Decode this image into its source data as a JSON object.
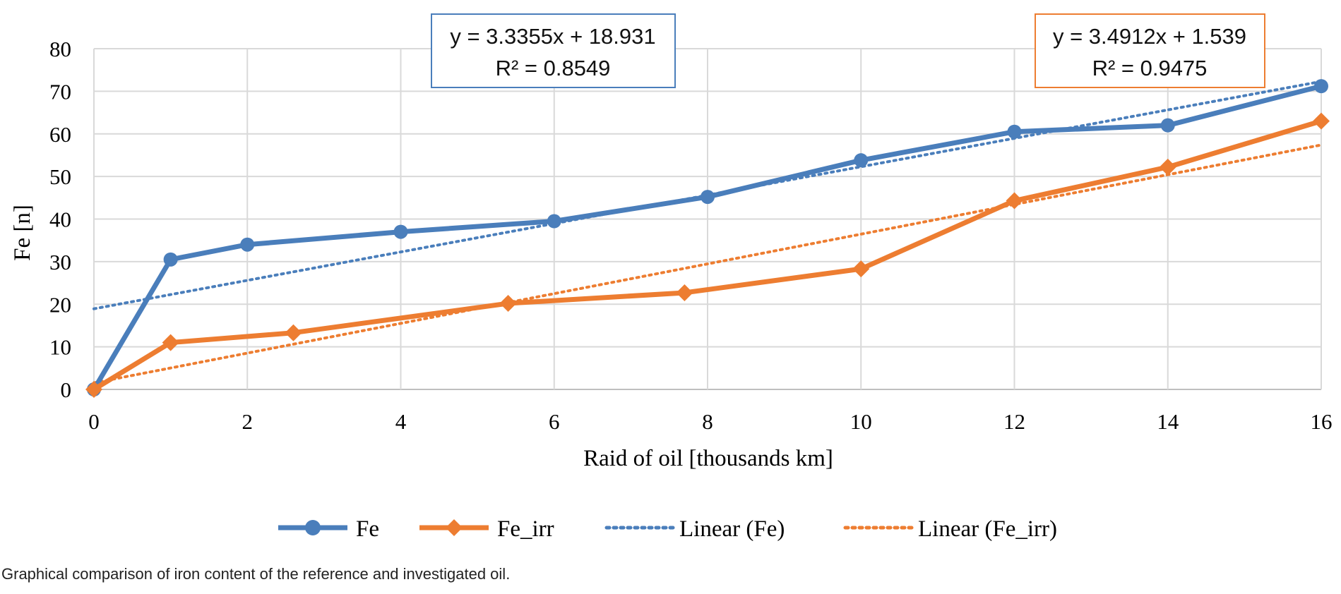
{
  "caption": "Graphical comparison of iron content of the reference and investigated oil.",
  "chart_data": {
    "type": "line",
    "title": "",
    "xlabel": "Raid of oil [thousands km]",
    "ylabel": "Fe [n]",
    "xlim": [
      0,
      16
    ],
    "ylim": [
      0,
      80
    ],
    "x_ticks": [
      "0",
      "2",
      "4",
      "6",
      "8",
      "10",
      "12",
      "14",
      "16"
    ],
    "y_ticks": [
      "0",
      "10",
      "20",
      "30",
      "40",
      "50",
      "60",
      "70",
      "80"
    ],
    "grid": true,
    "legend_position": "bottom",
    "series": [
      {
        "name": "Fe",
        "color": "#4a7ebb",
        "marker": "circle",
        "points": [
          [
            0,
            0
          ],
          [
            1,
            30.5
          ],
          [
            2,
            34
          ],
          [
            4,
            37
          ],
          [
            6,
            39.5
          ],
          [
            8,
            45.2
          ],
          [
            10,
            53.8
          ],
          [
            12,
            60.5
          ],
          [
            14,
            62
          ],
          [
            16,
            71.2
          ]
        ]
      },
      {
        "name": "Fe_irr",
        "color": "#ed7d31",
        "marker": "diamond",
        "points": [
          [
            0,
            0
          ],
          [
            1,
            11
          ],
          [
            2.6,
            13.3
          ],
          [
            5.4,
            20.2
          ],
          [
            7.7,
            22.7
          ],
          [
            10,
            28.3
          ],
          [
            12,
            44.3
          ],
          [
            14,
            52.2
          ],
          [
            16,
            63
          ]
        ]
      }
    ],
    "trendlines": [
      {
        "name": "Linear (Fe)",
        "color": "#4a7ebb",
        "slope": 3.3355,
        "intercept": 18.931,
        "equation": "y = 3.3355x + 18.931",
        "r2": "R² = 0.8549"
      },
      {
        "name": "Linear (Fe_irr)",
        "color": "#ed7d31",
        "slope": 3.4912,
        "intercept": 1.539,
        "equation": "y = 3.4912x + 1.539",
        "r2": "R² = 0.9475"
      }
    ]
  }
}
